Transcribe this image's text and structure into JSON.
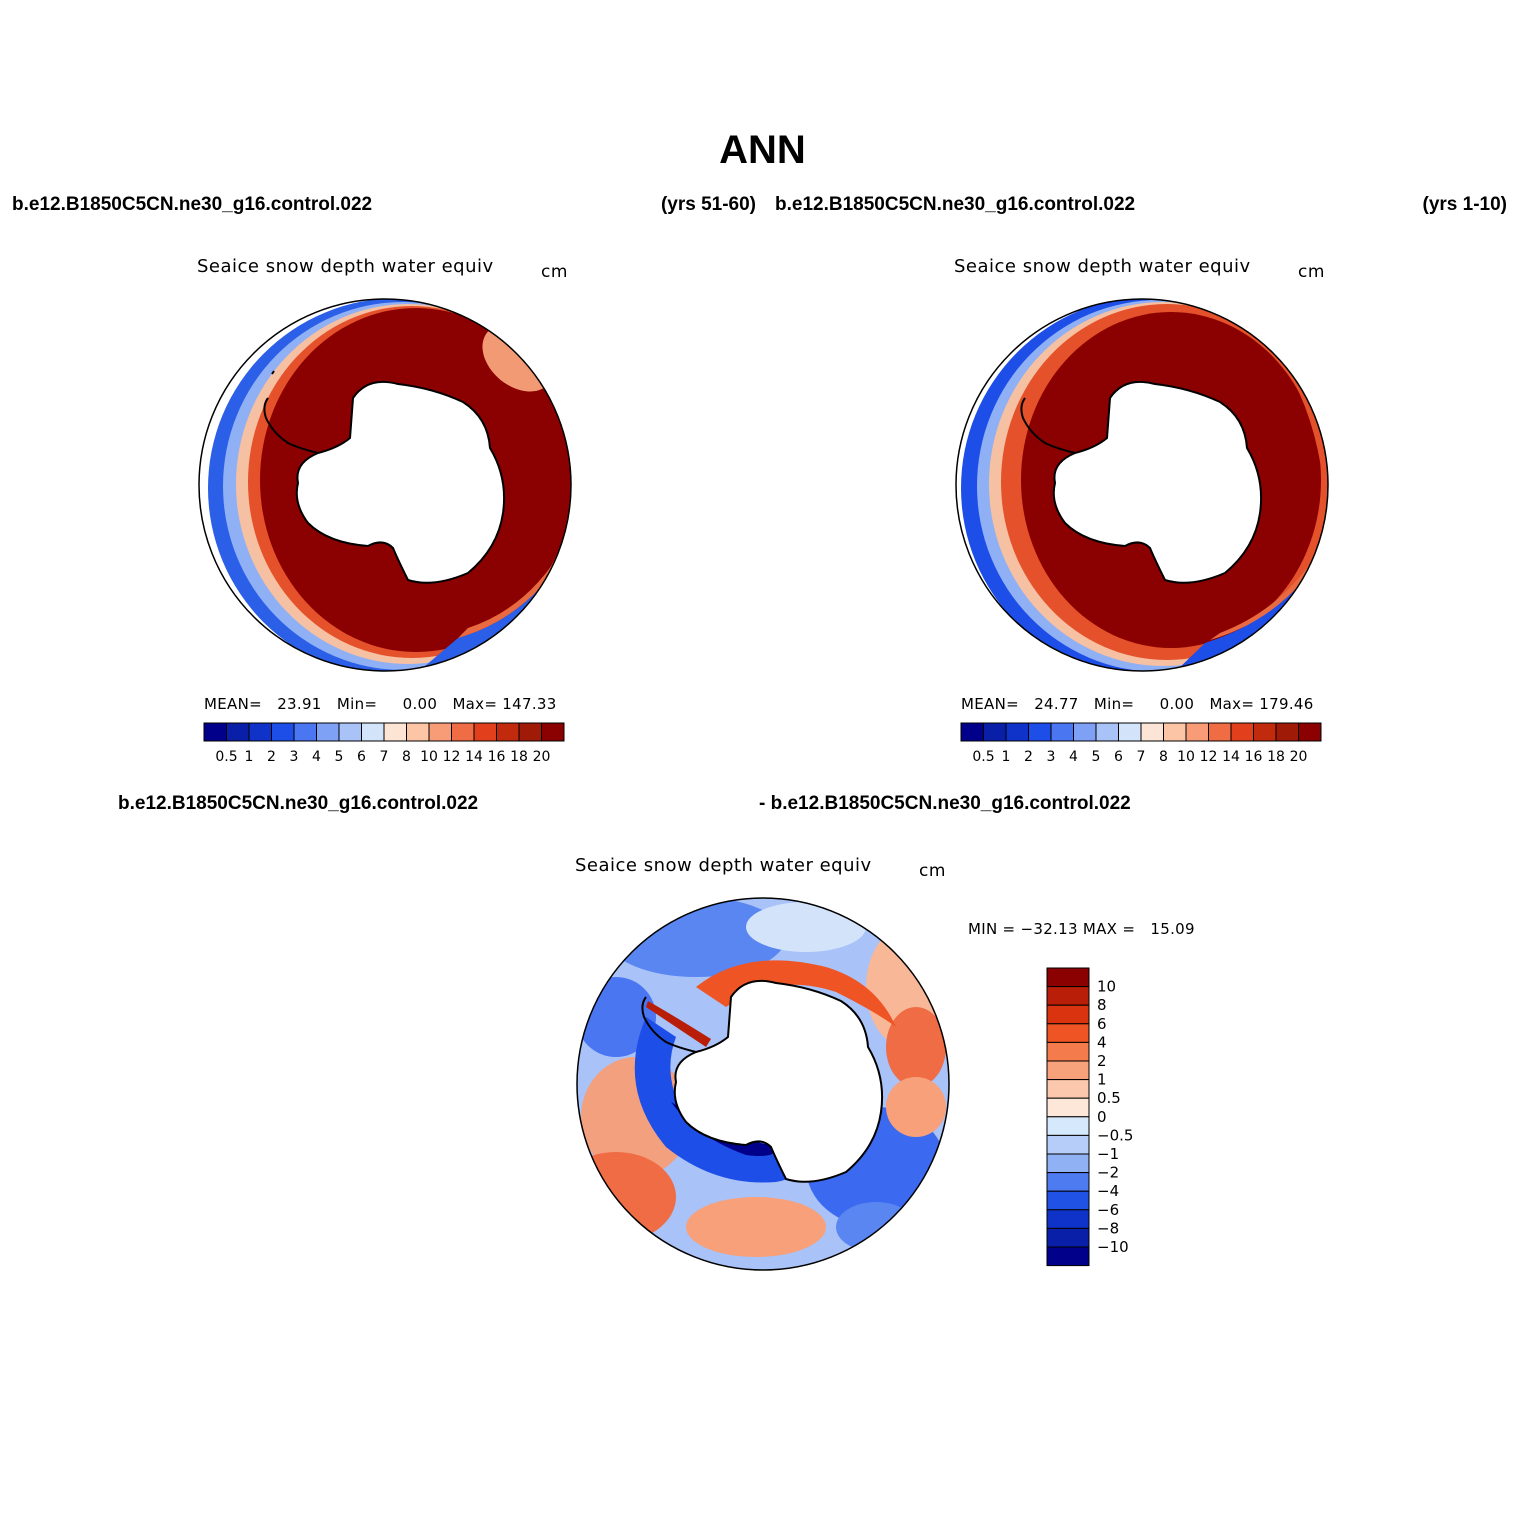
{
  "title": "ANN",
  "panels": [
    {
      "case_name": "b.e12.B1850C5CN.ne30_g16.control.022",
      "years": "(yrs 51-60)",
      "plot_title": "Seaice snow depth water equiv",
      "units": "cm",
      "stats": {
        "mean_label": "MEAN=",
        "mean": "23.91",
        "min_label": "Min=",
        "min": "0.00",
        "max_label": "Max=",
        "max": "147.33"
      }
    },
    {
      "case_name": "b.e12.B1850C5CN.ne30_g16.control.022",
      "years": "(yrs 1-10)",
      "plot_title": "Seaice snow depth water equiv",
      "units": "cm",
      "stats": {
        "mean_label": "MEAN=",
        "mean": "24.77",
        "min_label": "Min=",
        "min": "0.00",
        "max_label": "Max=",
        "max": "179.46"
      }
    }
  ],
  "difference": {
    "case_name_a": "b.e12.B1850C5CN.ne30_g16.control.022",
    "case_name_b": "- b.e12.B1850C5CN.ne30_g16.control.022",
    "plot_title": "Seaice snow depth water equiv",
    "units": "cm",
    "stats": "MIN = −32.13 MAX =   15.09"
  },
  "colorbar_abs": {
    "labels": [
      "0.5",
      "1",
      "2",
      "3",
      "4",
      "5",
      "6",
      "7",
      "8",
      "10",
      "12",
      "14",
      "16",
      "18",
      "20"
    ],
    "colors": [
      "#00008b",
      "#0a1fa8",
      "#0f33c8",
      "#1e4ee8",
      "#4a76f2",
      "#7ea0f5",
      "#a9c2f7",
      "#d3e4fa",
      "#fde5d5",
      "#fbc5a6",
      "#f79c76",
      "#ef6c45",
      "#e23f1c",
      "#c22a0e",
      "#a01a08",
      "#8b0000"
    ]
  },
  "colorbar_diff": {
    "labels": [
      "10",
      "8",
      "6",
      "4",
      "2",
      "1",
      "0.5",
      "0",
      "−0.5",
      "−1",
      "−2",
      "−4",
      "−6",
      "−8",
      "−10"
    ],
    "colors": [
      "#8b0000",
      "#b81e08",
      "#d9340f",
      "#ee5424",
      "#f47b4c",
      "#f8a27c",
      "#fbc8ad",
      "#fde7d8",
      "#d6e8fb",
      "#b5cdf8",
      "#91b1f5",
      "#4f7bf0",
      "#2052e6",
      "#0f33c8",
      "#0a1fa8",
      "#00008b"
    ]
  }
}
